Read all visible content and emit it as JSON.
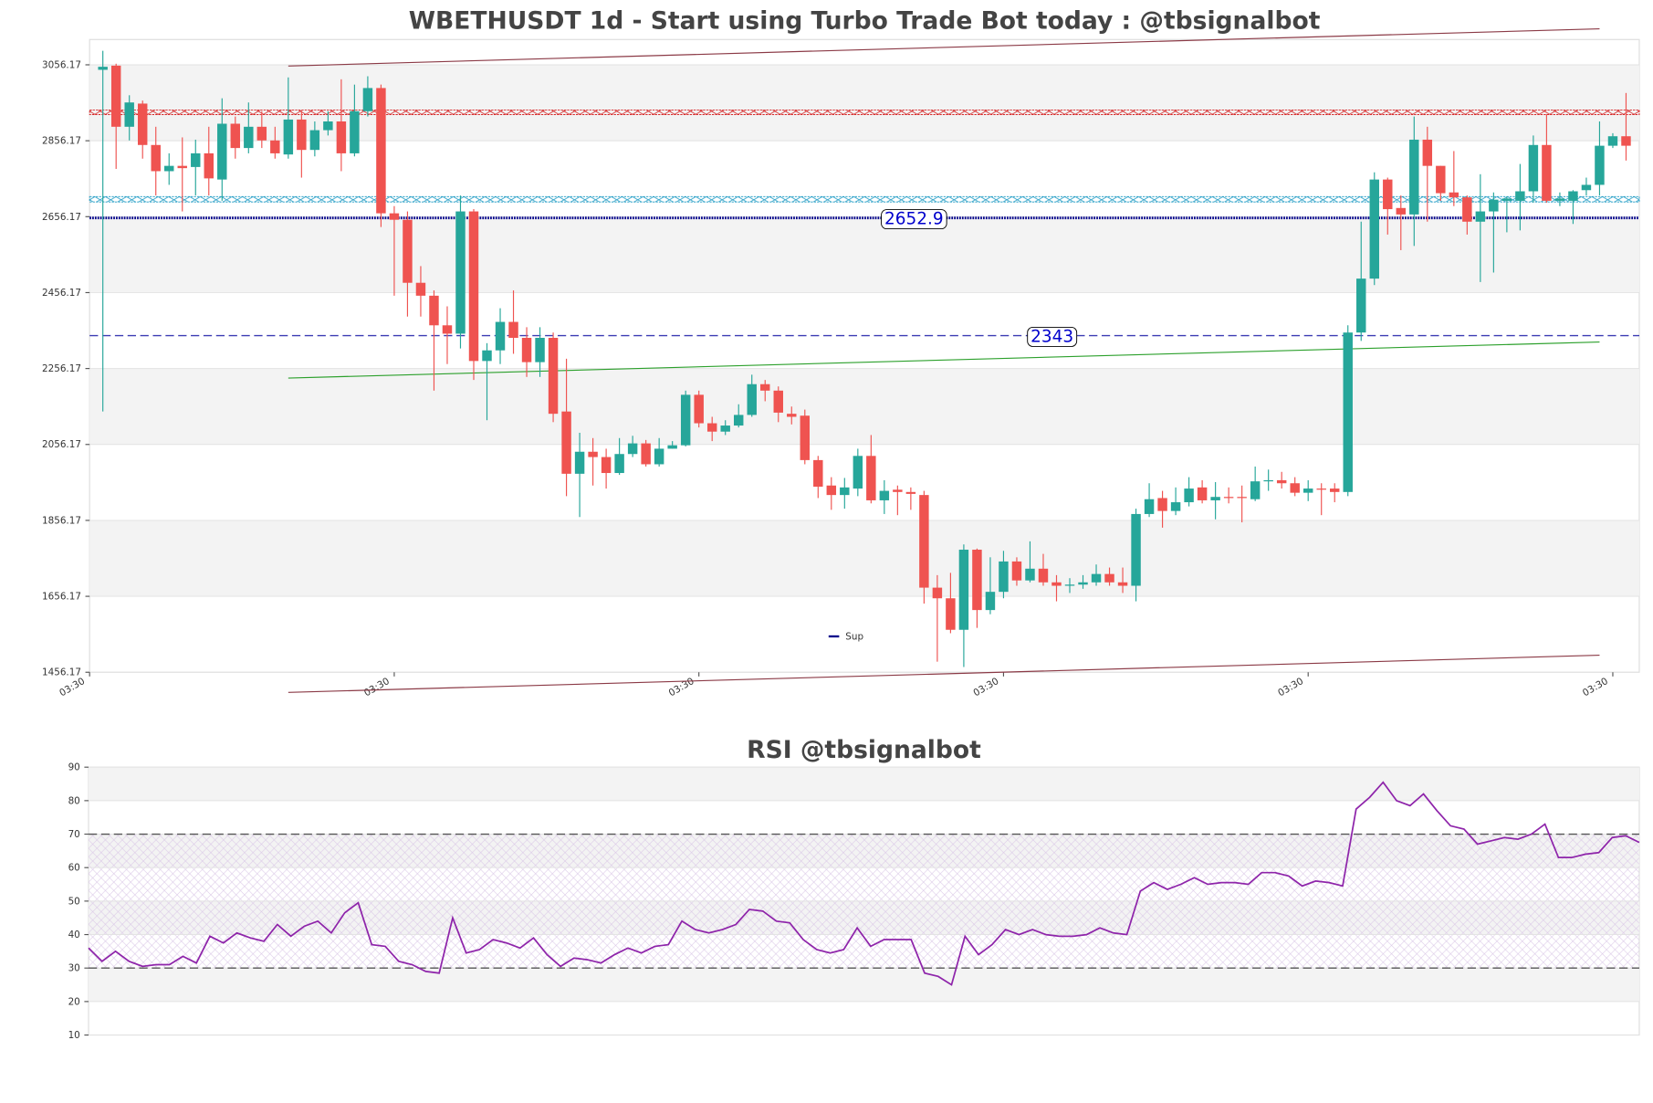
{
  "chart_data": [
    {
      "type": "candlestick",
      "title": "WBETHUSDT 1d - Start using Turbo Trade Bot today : @tbsignalbot",
      "xlim": [
        -1,
        116
      ],
      "xticks": [
        {
          "value": -1,
          "label": "03:30"
        },
        {
          "value": 22,
          "label": "03:30"
        },
        {
          "value": 45,
          "label": "03:30"
        },
        {
          "value": 68,
          "label": "03:30"
        },
        {
          "value": 91,
          "label": "03:30"
        },
        {
          "value": 114,
          "label": "03:30"
        }
      ],
      "ylim": [
        1456.17,
        3122.84
      ],
      "yticks": [
        1456.17,
        1656.17,
        1856.17,
        2056.17,
        2256.17,
        2456.17,
        2656.17,
        2856.17,
        3056.17
      ],
      "grid": true,
      "up_color": "#26a69a",
      "down_color": "#ef5350",
      "open": [
        3043,
        3054,
        2893,
        2954,
        2845,
        2776,
        2790,
        2787,
        2823,
        2754,
        2901,
        2837,
        2893,
        2857,
        2820,
        2912,
        2832,
        2884,
        2907,
        2823,
        2934,
        2995,
        2665,
        2648,
        2482,
        2448,
        2370,
        2348,
        2670,
        2276,
        2304,
        2379,
        2337,
        2273,
        2337,
        2143,
        1979,
        2037,
        2023,
        1981,
        2031,
        2059,
        2004,
        2045,
        2054,
        2187,
        2112,
        2090,
        2106,
        2134,
        2215,
        2198,
        2137,
        2132,
        2015,
        1948,
        1923,
        1940,
        2026,
        1909,
        1937,
        1931,
        1923,
        1679,
        1651,
        1568,
        1779,
        1620,
        1668,
        1748,
        1698,
        1729,
        1693,
        1684,
        1687,
        1693,
        1715,
        1693,
        1684,
        1873,
        1915,
        1881,
        1904,
        1943,
        1909,
        1918,
        1918,
        1912,
        1959,
        1962,
        1954,
        1929,
        1940,
        1940,
        1931,
        2351,
        2493,
        2754,
        2679,
        2662,
        2859,
        2790,
        2720,
        2707,
        2643,
        2670,
        2698,
        2698,
        2723,
        2845,
        2698,
        2698,
        2726,
        2740,
        2843,
        2868
      ],
      "high": [
        3093,
        3059,
        2976,
        2962,
        2893,
        2823,
        2865,
        2859,
        2893,
        2968,
        2920,
        2957,
        2934,
        2893,
        3023,
        2934,
        2907,
        2934,
        3018,
        3004,
        3026,
        3004,
        2684,
        2670,
        2526,
        2462,
        2420,
        2712,
        2676,
        2323,
        2415,
        2462,
        2365,
        2365,
        2351,
        2282,
        2087,
        2073,
        2045,
        2073,
        2079,
        2068,
        2073,
        2065,
        2198,
        2198,
        2129,
        2120,
        2162,
        2240,
        2226,
        2209,
        2156,
        2148,
        2026,
        1970,
        1968,
        2045,
        2081,
        1962,
        1948,
        1943,
        1934,
        1712,
        1718,
        1793,
        1782,
        1759,
        1776,
        1759,
        1801,
        1768,
        1712,
        1704,
        1712,
        1740,
        1732,
        1732,
        1887,
        1954,
        1934,
        1943,
        1970,
        1962,
        1957,
        1943,
        1948,
        1998,
        1990,
        1984,
        1970,
        1962,
        1954,
        1954,
        2370,
        2643,
        2773,
        2759,
        2712,
        2920,
        2893,
        2790,
        2829,
        2712,
        2768,
        2720,
        2709,
        2795,
        2870,
        2926,
        2720,
        2726,
        2759,
        2907,
        2876,
        2982
      ],
      "low": [
        2143,
        2782,
        2857,
        2809,
        2712,
        2740,
        2670,
        2712,
        2712,
        2698,
        2809,
        2823,
        2837,
        2809,
        2809,
        2759,
        2815,
        2870,
        2776,
        2815,
        2920,
        2629,
        2448,
        2393,
        2393,
        2198,
        2268,
        2309,
        2226,
        2120,
        2268,
        2295,
        2234,
        2234,
        2115,
        1920,
        1865,
        1948,
        1940,
        1976,
        2023,
        1998,
        1998,
        2045,
        2051,
        2101,
        2065,
        2081,
        2101,
        2129,
        2170,
        2115,
        2109,
        2004,
        1915,
        1884,
        1887,
        1920,
        1901,
        1873,
        1870,
        1884,
        1637,
        1484,
        1559,
        1470,
        1573,
        1609,
        1651,
        1684,
        1693,
        1684,
        1643,
        1665,
        1676,
        1684,
        1684,
        1665,
        1643,
        1865,
        1837,
        1870,
        1893,
        1901,
        1859,
        1901,
        1851,
        1907,
        1934,
        1940,
        1920,
        1907,
        1870,
        1904,
        1920,
        2329,
        2476,
        2609,
        2568,
        2579,
        2643,
        2698,
        2684,
        2609,
        2484,
        2509,
        2615,
        2620,
        2693,
        2693,
        2684,
        2637,
        2712,
        2712,
        2837,
        2804
      ],
      "close": [
        3051,
        2893,
        2957,
        2845,
        2776,
        2790,
        2784,
        2823,
        2757,
        2901,
        2837,
        2893,
        2857,
        2823,
        2912,
        2832,
        2884,
        2907,
        2823,
        2934,
        2995,
        2665,
        2648,
        2482,
        2448,
        2370,
        2348,
        2670,
        2276,
        2304,
        2379,
        2337,
        2273,
        2337,
        2137,
        1979,
        2037,
        2023,
        1981,
        2031,
        2059,
        2004,
        2045,
        2054,
        2187,
        2112,
        2090,
        2106,
        2134,
        2215,
        2198,
        2140,
        2129,
        2015,
        1945,
        1923,
        1943,
        2026,
        1909,
        1934,
        1931,
        1926,
        1679,
        1651,
        1568,
        1779,
        1620,
        1668,
        1748,
        1698,
        1729,
        1693,
        1684,
        1687,
        1693,
        1715,
        1693,
        1684,
        1873,
        1912,
        1881,
        1904,
        1940,
        1909,
        1918,
        1915,
        1915,
        1959,
        1962,
        1954,
        1929,
        1940,
        1937,
        1931,
        2351,
        2493,
        2754,
        2676,
        2662,
        2859,
        2790,
        2718,
        2707,
        2643,
        2670,
        2701,
        2704,
        2723,
        2845,
        2698,
        2704,
        2723,
        2740,
        2843,
        2868,
        2843
      ],
      "zones": [
        {
          "values": [
            2925,
            2937
          ],
          "color": "#d62728"
        },
        {
          "values": [
            2695,
            2709
          ],
          "color": "#1f9bc4"
        }
      ],
      "hlines": [
        {
          "value": 2652.9,
          "name": "Sup",
          "color": "#00008b",
          "style": "dotted"
        },
        {
          "value": 2343,
          "color": "#3b3bb3",
          "style": "dashed"
        }
      ],
      "trendlines": [
        {
          "x": [
            14,
            113
          ],
          "y": [
            3053,
            3151
          ],
          "color": "#8b3a46"
        },
        {
          "x": [
            14,
            113
          ],
          "y": [
            1403,
            1501
          ],
          "color": "#8b3a46"
        },
        {
          "x": [
            14,
            113
          ],
          "y": [
            2231,
            2326
          ],
          "color": "#2ca02c"
        }
      ],
      "legend": "lower center"
    },
    {
      "type": "line",
      "title": "RSI @tbsignalbot",
      "color": "#8e24aa",
      "xlim": [
        0,
        115
      ],
      "ylim": [
        10,
        90
      ],
      "yticks": [
        10,
        20,
        30,
        40,
        50,
        60,
        70,
        80,
        90
      ],
      "grid": true,
      "values": [
        36,
        32,
        35,
        32,
        30.5,
        31,
        31,
        33.5,
        31.5,
        39.5,
        37.5,
        40.5,
        39,
        38,
        43,
        39.5,
        42.5,
        44,
        40.5,
        46.5,
        49.5,
        37,
        36.5,
        32,
        31,
        29,
        28.5,
        45,
        34.5,
        35.5,
        38.5,
        37.5,
        36,
        39,
        34,
        30.5,
        33,
        32.5,
        31.5,
        34,
        36,
        34.5,
        36.5,
        37,
        44,
        41.5,
        40.5,
        41.5,
        43,
        47.5,
        47,
        44,
        43.5,
        38.5,
        35.5,
        34.5,
        35.5,
        42,
        36.5,
        38.5,
        38.5,
        38.5,
        28.5,
        27.5,
        25,
        39.5,
        34,
        37,
        41.5,
        40,
        41.5,
        40,
        39.5,
        39.5,
        40,
        42,
        40.5,
        40,
        53,
        55.5,
        53.5,
        55,
        57,
        55,
        55.5,
        55.5,
        55,
        58.5,
        58.5,
        57.5,
        54.5,
        56,
        55.5,
        54.5,
        77.5,
        81,
        85.5,
        80,
        78.5,
        82,
        77,
        72.5,
        71.5,
        67,
        68,
        69,
        68.5,
        70,
        73,
        63,
        63,
        64,
        64.5,
        69,
        69.5,
        67.5
      ],
      "hlines": [
        {
          "value": 30,
          "color": "#555555",
          "style": "dashed"
        },
        {
          "value": 70,
          "color": "#555555",
          "style": "dashed"
        }
      ]
    }
  ]
}
